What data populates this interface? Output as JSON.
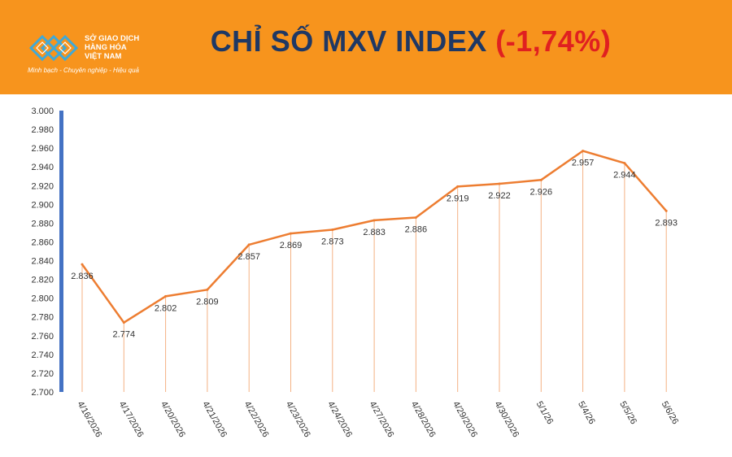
{
  "header": {
    "logo": {
      "name_lines": [
        "SỞ GIAO DỊCH",
        "HÀNG HÓA",
        "VIỆT NAM"
      ],
      "tagline": "Minh bạch - Chuyên nghiệp - Hiệu quả"
    },
    "title": "CHỈ SỐ MXV INDEX",
    "change": "(-1,74%)"
  },
  "colors": {
    "header_bg": "#f7941d",
    "title": "#1f3864",
    "change": "#e02020",
    "line": "#ed7d31",
    "axis_bar": "#4472c4",
    "drop_line": "#f4b183"
  },
  "chart_data": {
    "type": "line",
    "categories": [
      "4/16/2026",
      "4/17/2026",
      "4/20/2026",
      "4/21/2026",
      "4/22/2026",
      "4/23/2026",
      "4/24/2026",
      "4/27/2026",
      "4/28/2026",
      "4/29/2026",
      "4/30/2026",
      "5/1/26",
      "5/4/26",
      "5/5/26",
      "5/6/26"
    ],
    "values": [
      2836,
      2774,
      2802,
      2809,
      2857,
      2869,
      2873,
      2883,
      2886,
      2919,
      2922,
      2926,
      2957,
      2944,
      2893
    ],
    "data_labels": [
      "2.836",
      "2.774",
      "2.802",
      "2.809",
      "2.857",
      "2.869",
      "2.873",
      "2.883",
      "2.886",
      "2.919",
      "2.922",
      "2.926",
      "2.957",
      "2.944",
      "2.893"
    ],
    "y_ticks": [
      2700,
      2720,
      2740,
      2760,
      2780,
      2800,
      2820,
      2840,
      2860,
      2880,
      2900,
      2920,
      2940,
      2960,
      2980,
      3000
    ],
    "y_tick_labels": [
      "2.700",
      "2.720",
      "2.740",
      "2.760",
      "2.780",
      "2.800",
      "2.820",
      "2.840",
      "2.860",
      "2.880",
      "2.900",
      "2.920",
      "2.940",
      "2.960",
      "2.980",
      "3.000"
    ],
    "ylim": [
      2700,
      3000
    ],
    "title": "",
    "xlabel": "",
    "ylabel": "",
    "grid": false,
    "legend": "none",
    "drop_lines": true
  }
}
